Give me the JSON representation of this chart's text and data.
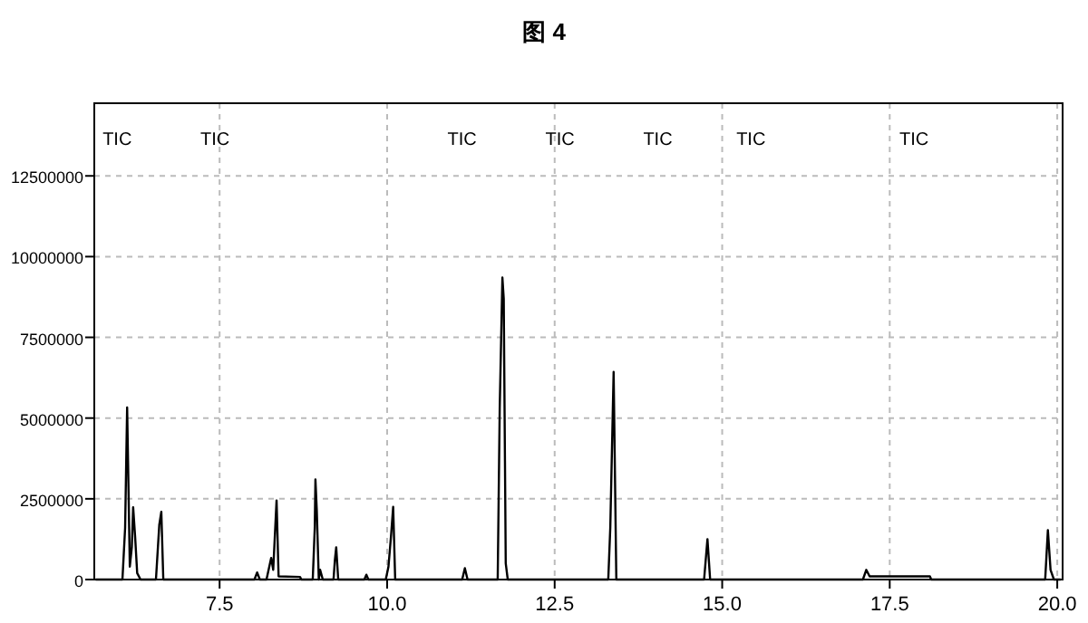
{
  "chart_data": {
    "type": "line",
    "title": "图 4",
    "x": [
      5.65,
      6.05,
      6.09,
      6.12,
      6.16,
      6.19,
      6.21,
      6.24,
      6.27,
      6.32,
      6.55,
      6.6,
      6.63,
      6.66,
      8.02,
      8.06,
      8.1,
      8.2,
      8.27,
      8.3,
      8.35,
      8.38,
      8.7,
      8.72,
      8.89,
      8.92,
      8.93,
      8.95,
      8.98,
      9.0,
      9.04,
      9.2,
      9.22,
      9.24,
      9.27,
      9.66,
      9.69,
      9.72,
      9.98,
      10.02,
      10.06,
      10.09,
      10.12,
      11.12,
      11.16,
      11.2,
      11.65,
      11.68,
      11.72,
      11.74,
      11.77,
      11.8,
      13.3,
      13.33,
      13.38,
      13.42,
      14.73,
      14.78,
      14.82,
      17.1,
      17.15,
      17.2,
      18.1,
      18.12,
      19.82,
      19.86,
      19.9,
      19.95,
      20.05
    ],
    "series": [
      {
        "color": "#000000",
        "values": [
          0,
          0,
          1600000,
          5330000,
          400000,
          1000000,
          2240000,
          1300000,
          200000,
          0,
          0,
          1700000,
          2100000,
          0,
          0,
          220000,
          0,
          0,
          670000,
          300000,
          2450000,
          100000,
          80000,
          0,
          0,
          1600000,
          3100000,
          2150000,
          0,
          300000,
          0,
          0,
          600000,
          1000000,
          0,
          0,
          150000,
          0,
          0,
          400000,
          1400000,
          2250000,
          0,
          0,
          350000,
          0,
          0,
          5300000,
          9350000,
          8700000,
          500000,
          0,
          0,
          1600000,
          6430000,
          0,
          0,
          1250000,
          0,
          0,
          300000,
          100000,
          100000,
          0,
          0,
          1530000,
          300000,
          0,
          0
        ]
      }
    ],
    "xlim": [
      5.63,
      20.08
    ],
    "ylim": [
      0,
      14750000
    ],
    "xticks": [
      7.5,
      {
        "value": 10,
        "label": "10.0"
      },
      12.5,
      {
        "value": 15,
        "label": "15.0"
      },
      17.5,
      {
        "value": 20,
        "label": "20.0"
      }
    ],
    "yticks": [
      0,
      2500000,
      5000000,
      7500000,
      10000000,
      12500000
    ],
    "grid": true,
    "annotations": [
      "TIC",
      "TIC",
      "TIC",
      "TIC",
      "TIC",
      "TIC",
      "TIC"
    ]
  }
}
